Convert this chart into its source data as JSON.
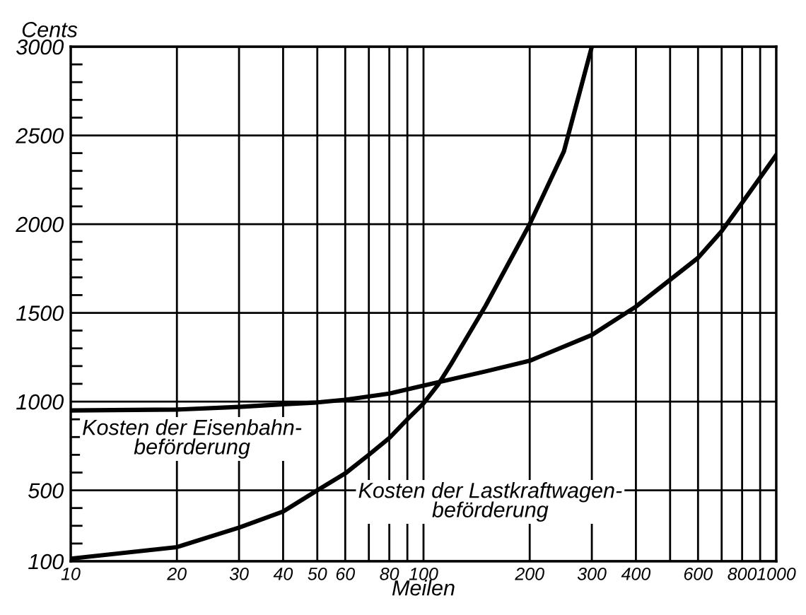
{
  "chart_data": {
    "type": "line",
    "ylabel": "Cents",
    "xlabel": "Meilen",
    "log": "x",
    "grid": true,
    "legend": false,
    "marker": "none",
    "line_style": "solid",
    "xlim": [
      10,
      1000
    ],
    "ylim": [
      100,
      3000
    ],
    "xticks": [
      10,
      20,
      30,
      40,
      50,
      60,
      {
        "value": 70,
        "label": null
      },
      80,
      {
        "value": 90,
        "label": null
      },
      100,
      200,
      300,
      400,
      {
        "value": 500,
        "label": null
      },
      600,
      {
        "value": 700,
        "label": null
      },
      800,
      {
        "value": 900,
        "label": null
      },
      1000
    ],
    "yticks": [
      100,
      {
        "value": 200,
        "label": null
      },
      {
        "value": 300,
        "label": null
      },
      {
        "value": 400,
        "label": null
      },
      500,
      {
        "value": 600,
        "label": null
      },
      {
        "value": 700,
        "label": null
      },
      {
        "value": 800,
        "label": null
      },
      {
        "value": 900,
        "label": null
      },
      1000,
      {
        "value": 1100,
        "label": null
      },
      {
        "value": 1200,
        "label": null
      },
      {
        "value": 1300,
        "label": null
      },
      {
        "value": 1400,
        "label": null
      },
      1500,
      {
        "value": 1600,
        "label": null
      },
      {
        "value": 1700,
        "label": null
      },
      {
        "value": 1800,
        "label": null
      },
      {
        "value": 1900,
        "label": null
      },
      2000,
      {
        "value": 2100,
        "label": null
      },
      {
        "value": 2200,
        "label": null
      },
      {
        "value": 2300,
        "label": null
      },
      {
        "value": 2400,
        "label": null
      },
      2500,
      {
        "value": 2600,
        "label": null
      },
      {
        "value": 2700,
        "label": null
      },
      {
        "value": 2800,
        "label": null
      },
      {
        "value": 2900,
        "label": null
      },
      3000
    ],
    "series": [
      {
        "color": "#000000",
        "x": [
          10,
          20,
          30,
          40,
          50,
          60,
          80,
          100,
          150,
          200,
          300,
          400,
          600,
          700,
          800,
          1000
        ],
        "values": [
          950,
          955,
          970,
          985,
          995,
          1010,
          1045,
          1090,
          1170,
          1230,
          1375,
          1535,
          1810,
          1960,
          2120,
          2390
        ]
      },
      {
        "color": "#000000",
        "x": [
          10,
          20,
          30,
          40,
          50,
          60,
          70,
          80,
          90,
          100,
          110,
          120,
          150,
          200,
          250,
          300
        ],
        "values": [
          115,
          180,
          290,
          380,
          500,
          595,
          700,
          795,
          900,
          990,
          1095,
          1215,
          1540,
          2000,
          2410,
          3000
        ]
      }
    ],
    "annotations": [
      {
        "text": "Kosten der Eisenbahn-\nbeförderung",
        "x": 10.5,
        "y": 945
      },
      {
        "text": "Kosten der Lastkraftwagen-\nbeförderung",
        "x": 62,
        "y": 590
      }
    ]
  }
}
